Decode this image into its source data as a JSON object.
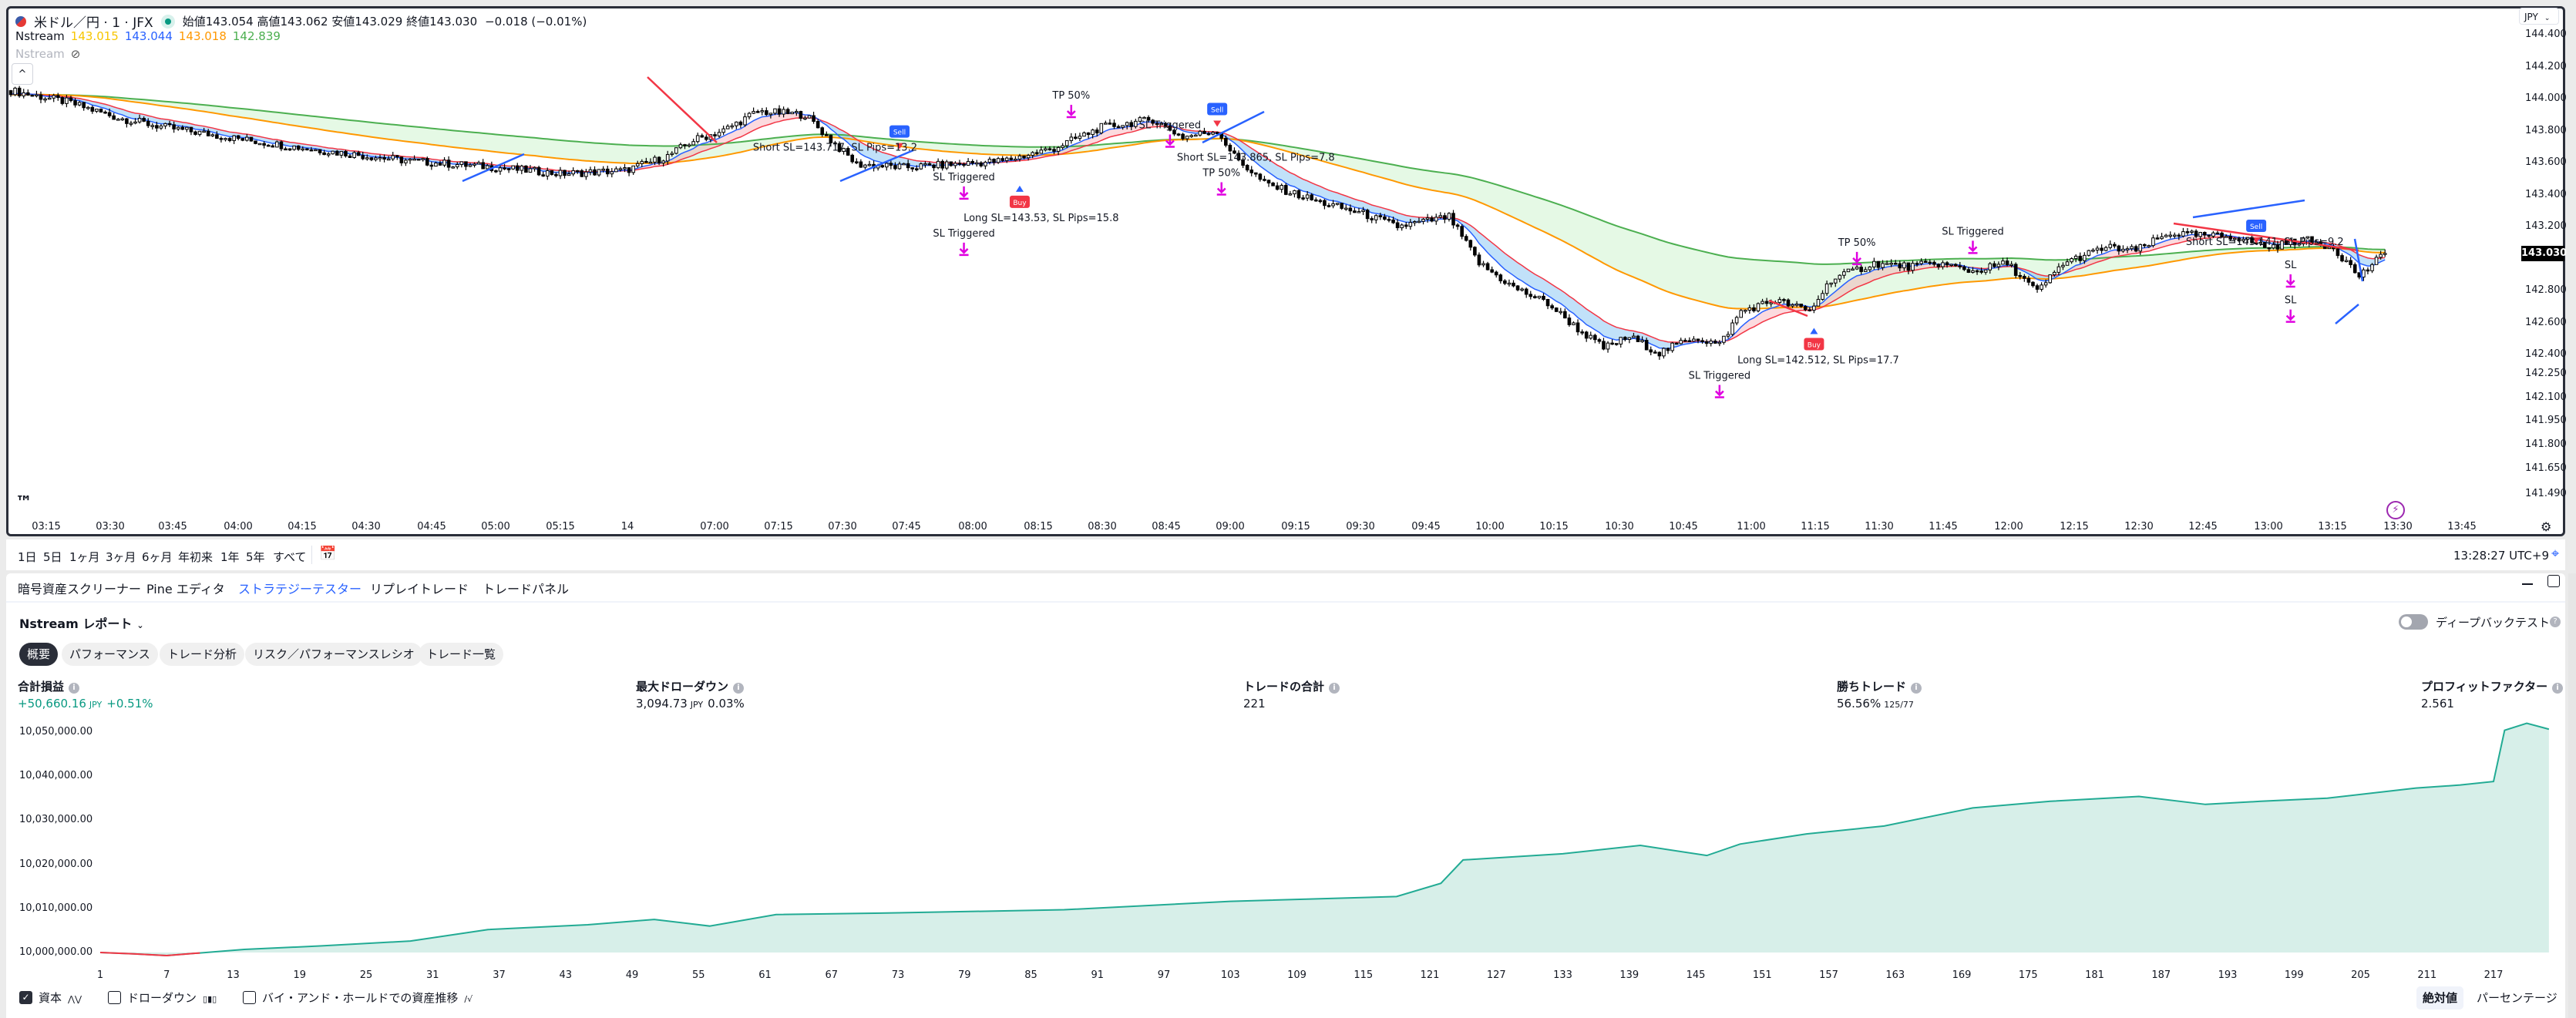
{
  "header": {
    "symbol_title": "米ドル／円 · 1 · JFX",
    "ohlc": "始値143.054 高値143.062 安値143.029 終値143.030",
    "change": "−0.018 (−0.01%)",
    "indicator_name": "Nstream",
    "indicator_values": [
      {
        "value": "143.015",
        "color": "#f7c600"
      },
      {
        "value": "143.044",
        "color": "#2962ff"
      },
      {
        "value": "143.018",
        "color": "#ff9800"
      },
      {
        "value": "142.839",
        "color": "#4caf50"
      }
    ],
    "indicator2_name": "Nstream",
    "currency": "JPY"
  },
  "price_axis": {
    "ticks": [
      "144.400",
      "144.200",
      "144.000",
      "143.800",
      "143.600",
      "143.400",
      "143.200",
      "142.800",
      "142.600",
      "142.400",
      "142.250",
      "142.100",
      "141.950",
      "141.800",
      "141.650",
      "141.490"
    ],
    "tick_values": [
      144.4,
      144.2,
      144.0,
      143.8,
      143.6,
      143.4,
      143.2,
      142.8,
      142.6,
      142.4,
      142.25,
      142.1,
      141.95,
      141.8,
      141.65,
      141.49
    ],
    "current_price": "143.030"
  },
  "time_axis": [
    "03:15",
    "03:30",
    "03:45",
    "04:00",
    "04:15",
    "04:30",
    "04:45",
    "05:00",
    "05:15",
    "14",
    "07:00",
    "07:15",
    "07:30",
    "07:45",
    "08:00",
    "08:15",
    "08:30",
    "08:45",
    "09:00",
    "09:15",
    "09:30",
    "09:45",
    "10:00",
    "10:15",
    "10:30",
    "10:45",
    "11:00",
    "11:15",
    "11:30",
    "11:45",
    "12:00",
    "12:15",
    "12:30",
    "12:45",
    "13:00",
    "13:15",
    "13:30",
    "13:45"
  ],
  "price_path": [
    [
      0,
      144.05
    ],
    [
      13,
      143.98
    ],
    [
      25,
      143.88
    ],
    [
      36,
      143.82
    ],
    [
      55,
      143.74
    ],
    [
      74,
      143.67
    ],
    [
      93,
      143.61
    ],
    [
      113,
      143.57
    ],
    [
      128,
      143.53
    ],
    [
      143,
      143.55
    ],
    [
      153,
      143.64
    ],
    [
      159,
      143.74
    ],
    [
      166,
      143.8
    ],
    [
      174,
      143.92
    ],
    [
      185,
      143.9
    ],
    [
      191,
      143.74
    ],
    [
      197,
      143.59
    ],
    [
      208,
      143.57
    ],
    [
      220,
      143.59
    ],
    [
      231,
      143.61
    ],
    [
      243,
      143.69
    ],
    [
      254,
      143.82
    ],
    [
      266,
      143.87
    ],
    [
      273,
      143.76
    ],
    [
      281,
      143.8
    ],
    [
      285,
      143.64
    ],
    [
      292,
      143.47
    ],
    [
      304,
      143.36
    ],
    [
      315,
      143.28
    ],
    [
      323,
      143.2
    ],
    [
      335,
      143.26
    ],
    [
      342,
      142.97
    ],
    [
      350,
      142.82
    ],
    [
      358,
      142.72
    ],
    [
      365,
      142.56
    ],
    [
      371,
      142.44
    ],
    [
      377,
      142.51
    ],
    [
      384,
      142.41
    ],
    [
      392,
      142.51
    ],
    [
      398,
      142.46
    ],
    [
      403,
      142.67
    ],
    [
      411,
      142.74
    ],
    [
      419,
      142.67
    ],
    [
      424,
      142.87
    ],
    [
      434,
      142.97
    ],
    [
      442,
      142.95
    ],
    [
      449,
      142.97
    ],
    [
      457,
      142.92
    ],
    [
      465,
      142.97
    ],
    [
      472,
      142.79
    ],
    [
      478,
      142.97
    ],
    [
      488,
      143.07
    ],
    [
      495,
      143.05
    ],
    [
      503,
      143.16
    ],
    [
      511,
      143.14
    ],
    [
      518,
      143.14
    ],
    [
      526,
      143.07
    ],
    [
      534,
      143.12
    ],
    [
      541,
      143.07
    ],
    [
      547,
      142.89
    ],
    [
      553,
      143.03
    ]
  ],
  "annotations": [
    {
      "bar": 192,
      "price": 143.83,
      "text": "Short SL=143.717, SL Pips=13.2"
    },
    {
      "bar": 222,
      "price": 143.49,
      "text": "SL Triggered"
    },
    {
      "bar": 240,
      "price": 143.45,
      "text": "Long SL=143.53, SL Pips=15.8"
    },
    {
      "bar": 222,
      "price": 143.26,
      "text": "SL Triggered"
    },
    {
      "bar": 247,
      "price": 144.0,
      "text": "TP 50%"
    },
    {
      "bar": 270,
      "price": 144.0,
      "text": "SL Triggered"
    },
    {
      "bar": 290,
      "price": 144.0,
      "text": "Short SL=143.865, SL Pips=7.8"
    },
    {
      "bar": 282,
      "price": 143.55,
      "text": "TP 50%"
    },
    {
      "bar": 430,
      "price": 143.08,
      "text": "TP 50%"
    },
    {
      "bar": 457,
      "price": 143.15,
      "text": "SL Triggered"
    },
    {
      "bar": 421,
      "price": 142.52,
      "text": "Long SL=142.512, SL Pips=17.7"
    },
    {
      "bar": 398,
      "price": 142.36,
      "text": "SL Triggered"
    },
    {
      "bar": 525,
      "price": 143.27,
      "text": "Short SL=143.141, SL Pips=9.2"
    },
    {
      "bar": 531,
      "price": 142.94,
      "text": "SL"
    },
    {
      "bar": 531,
      "price": 142.72,
      "text": "SL"
    }
  ],
  "signals": [
    {
      "bar": 207,
      "price": 143.79,
      "type": "Sell",
      "color": "#2962ff"
    },
    {
      "bar": 235,
      "price": 143.35,
      "type": "Buy",
      "color": "#f23645"
    },
    {
      "bar": 281,
      "price": 143.93,
      "type": "Sell",
      "color": "#2962ff"
    },
    {
      "bar": 420,
      "price": 142.46,
      "type": "Buy",
      "color": "#f23645"
    },
    {
      "bar": 523,
      "price": 143.2,
      "type": "Sell",
      "color": "#2962ff"
    }
  ],
  "toolbar": {
    "ranges": [
      "1日",
      "5日",
      "1ヶ月",
      "3ヶ月",
      "6ヶ月",
      "年初来",
      "1年",
      "5年",
      "すべて"
    ],
    "clock": "13:28:27 UTC+9"
  },
  "tabs": [
    "暗号資産スクリーナー",
    "Pine エディタ",
    "ストラテジーテスター",
    "リプレイトレード",
    "トレードパネル"
  ],
  "active_tab": 2,
  "report": {
    "title": "Nstream レポート",
    "pills": [
      "概要",
      "パフォーマンス",
      "トレード分析",
      "リスク／パフォーマンスレシオ",
      "トレード一覧"
    ],
    "deep_backtest_label": "ディープバックテスト",
    "deep_backtest_on": false,
    "metrics": [
      {
        "label": "合計損益",
        "value": "+50,660.16",
        "unit": "JPY",
        "extra": "+0.51%",
        "positive": true
      },
      {
        "label": "最大ドローダウン",
        "value": "3,094.73",
        "unit": "JPY",
        "extra": "0.03%",
        "positive": false
      },
      {
        "label": "トレードの合計",
        "value": "221",
        "unit": "",
        "extra": "",
        "positive": false
      },
      {
        "label": "勝ちトレード",
        "value": "56.56%",
        "unit": "125/77",
        "extra": "",
        "positive": false
      },
      {
        "label": "プロフィットファクター",
        "value": "2.561",
        "unit": "",
        "extra": "",
        "positive": false
      }
    ]
  },
  "chart_data": {
    "type": "area",
    "y_ticks": [
      "10,050,000.00",
      "10,040,000.00",
      "10,030,000.00",
      "10,020,000.00",
      "10,010,000.00",
      "10,000,000.00"
    ],
    "ylim": [
      10000000,
      10050000
    ],
    "x_ticks": [
      "1",
      "7",
      "13",
      "19",
      "25",
      "31",
      "37",
      "43",
      "49",
      "55",
      "61",
      "67",
      "73",
      "79",
      "85",
      "91",
      "97",
      "103",
      "109",
      "115",
      "121",
      "127",
      "133",
      "139",
      "145",
      "151",
      "157",
      "163",
      "169",
      "175",
      "181",
      "187",
      "193",
      "199",
      "205",
      "211",
      "217"
    ],
    "series": [
      {
        "name": "資本",
        "points": [
          [
            1,
            10000000
          ],
          [
            4,
            9999700
          ],
          [
            7,
            9999300
          ],
          [
            10,
            9999900
          ],
          [
            14,
            10000700
          ],
          [
            21,
            10001500
          ],
          [
            29,
            10002600
          ],
          [
            36,
            10005200
          ],
          [
            45,
            10006300
          ],
          [
            51,
            10007500
          ],
          [
            56,
            10006000
          ],
          [
            62,
            10008600
          ],
          [
            73,
            10009000
          ],
          [
            88,
            10009700
          ],
          [
            103,
            10011600
          ],
          [
            118,
            10012700
          ],
          [
            122,
            10015700
          ],
          [
            124,
            10021000
          ],
          [
            133,
            10022400
          ],
          [
            140,
            10024300
          ],
          [
            146,
            10022000
          ],
          [
            149,
            10024600
          ],
          [
            155,
            10026900
          ],
          [
            162,
            10028700
          ],
          [
            170,
            10032800
          ],
          [
            177,
            10034300
          ],
          [
            185,
            10035400
          ],
          [
            191,
            10033600
          ],
          [
            196,
            10034300
          ],
          [
            202,
            10035000
          ],
          [
            210,
            10037300
          ],
          [
            214,
            10038000
          ],
          [
            217,
            10038800
          ],
          [
            218,
            10050400
          ],
          [
            220,
            10052000
          ],
          [
            222,
            10050660
          ]
        ]
      }
    ],
    "legend": [
      {
        "label": "資本",
        "checked": true
      },
      {
        "label": "ドローダウン",
        "checked": false
      },
      {
        "label": "バイ・アンド・ホールドでの資産推移",
        "checked": false
      }
    ],
    "scale_buttons": [
      "絶対値",
      "パーセンテージ"
    ],
    "active_scale": 0,
    "line_color": "#22ab94",
    "fill_color": "#d7efe9",
    "negative_color": "#f23645"
  }
}
